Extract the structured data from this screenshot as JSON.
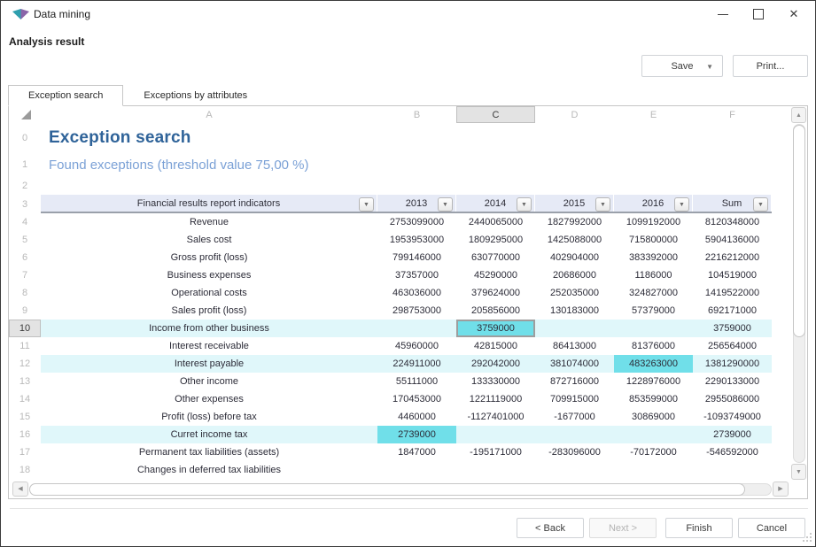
{
  "window": {
    "title": "Data mining",
    "controls": {
      "minimize": "minimize",
      "maximize": "maximize",
      "close": "close"
    }
  },
  "toolbar": {
    "subtitle": "Analysis result",
    "save_label": "Save",
    "print_label": "Print..."
  },
  "tabs": [
    {
      "label": "Exception search",
      "active": true
    },
    {
      "label": "Exceptions by attributes",
      "active": false
    }
  ],
  "sheet": {
    "column_letters": [
      "A",
      "B",
      "C",
      "D",
      "E",
      "F"
    ],
    "selected_column_index": 2,
    "selected_row_num": 10,
    "title_row": {
      "num": "0",
      "text": "Exception search"
    },
    "subtitle_row": {
      "num": "1",
      "text": "Found exceptions (threshold value 75,00 %)"
    },
    "spacer_row": {
      "num": "2"
    },
    "header_row": {
      "num": "3",
      "indicator_label": "Financial results report indicators",
      "columns": [
        "2013",
        "2014",
        "2015",
        "2016",
        "Sum"
      ]
    },
    "rows": [
      {
        "num": 4,
        "label": "Revenue",
        "values": [
          "2753099000",
          "2440065000",
          "1827992000",
          "1099192000",
          "8120348000"
        ],
        "highlighted": false,
        "exception_cols": []
      },
      {
        "num": 5,
        "label": "Sales cost",
        "values": [
          "1953953000",
          "1809295000",
          "1425088000",
          "715800000",
          "5904136000"
        ],
        "highlighted": false,
        "exception_cols": []
      },
      {
        "num": 6,
        "label": "Gross profit (loss)",
        "values": [
          "799146000",
          "630770000",
          "402904000",
          "383392000",
          "2216212000"
        ],
        "highlighted": false,
        "exception_cols": []
      },
      {
        "num": 7,
        "label": "Business expenses",
        "values": [
          "37357000",
          "45290000",
          "20686000",
          "1186000",
          "104519000"
        ],
        "highlighted": false,
        "exception_cols": []
      },
      {
        "num": 8,
        "label": "Operational costs",
        "values": [
          "463036000",
          "379624000",
          "252035000",
          "324827000",
          "1419522000"
        ],
        "highlighted": false,
        "exception_cols": []
      },
      {
        "num": 9,
        "label": "Sales profit (loss)",
        "values": [
          "298753000",
          "205856000",
          "130183000",
          "57379000",
          "692171000"
        ],
        "highlighted": false,
        "exception_cols": []
      },
      {
        "num": 10,
        "label": "Income from other business",
        "values": [
          "",
          "3759000",
          "",
          "",
          "3759000"
        ],
        "highlighted": true,
        "exception_cols": [
          1
        ],
        "selected_cell_index": 1
      },
      {
        "num": 11,
        "label": "Interest receivable",
        "values": [
          "45960000",
          "42815000",
          "86413000",
          "81376000",
          "256564000"
        ],
        "highlighted": false,
        "exception_cols": []
      },
      {
        "num": 12,
        "label": "Interest payable",
        "values": [
          "224911000",
          "292042000",
          "381074000",
          "483263000",
          "1381290000"
        ],
        "highlighted": true,
        "exception_cols": [
          3
        ]
      },
      {
        "num": 13,
        "label": "Other income",
        "values": [
          "55111000",
          "133330000",
          "872716000",
          "1228976000",
          "2290133000"
        ],
        "highlighted": false,
        "exception_cols": []
      },
      {
        "num": 14,
        "label": "Other expenses",
        "values": [
          "170453000",
          "1221119000",
          "709915000",
          "853599000",
          "2955086000"
        ],
        "highlighted": false,
        "exception_cols": []
      },
      {
        "num": 15,
        "label": "Profit (loss) before tax",
        "values": [
          "4460000",
          "-1127401000",
          "-1677000",
          "30869000",
          "-1093749000"
        ],
        "highlighted": false,
        "exception_cols": []
      },
      {
        "num": 16,
        "label": "Curret income tax",
        "values": [
          "2739000",
          "",
          "",
          "",
          "2739000"
        ],
        "highlighted": true,
        "exception_cols": [
          0
        ]
      },
      {
        "num": 17,
        "label": "Permanent tax liabilities (assets)",
        "values": [
          "1847000",
          "-195171000",
          "-283096000",
          "-70172000",
          "-546592000"
        ],
        "highlighted": false,
        "exception_cols": []
      },
      {
        "num": 18,
        "label": "Changes in deferred tax liabilities",
        "values": [
          "",
          "",
          "",
          "",
          ""
        ],
        "highlighted": false,
        "exception_cols": []
      }
    ]
  },
  "wizard": {
    "back": "< Back",
    "next": "Next >",
    "finish": "Finish",
    "cancel": "Cancel"
  },
  "colors": {
    "title_accent": "#2f6399",
    "subtitle_accent": "#7ba1d6",
    "row_band": "#e0f7fa",
    "exception_cell": "#70dfe9",
    "header_fill": "#e6eaf6",
    "icon_teal": "#2f9fae",
    "icon_purple": "#8a64a8"
  }
}
